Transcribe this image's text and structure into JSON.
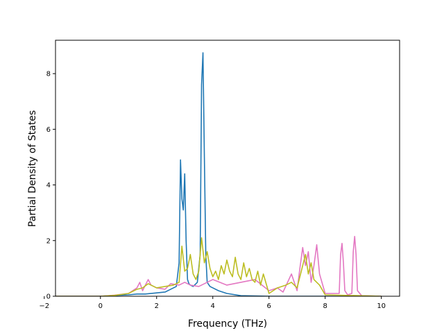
{
  "chart_data": {
    "type": "line",
    "title": "",
    "xlabel": "Frequency (THz)",
    "ylabel": "Partial Density of States",
    "xlim": [
      -1.6,
      10.65
    ],
    "ylim": [
      0,
      9.2
    ],
    "xticks": [
      -2,
      0,
      2,
      4,
      6,
      8,
      10
    ],
    "xtick_labels": [
      "−2",
      "0",
      "2",
      "4",
      "6",
      "8",
      "10"
    ],
    "yticks": [
      0,
      2,
      4,
      6,
      8
    ],
    "ytick_labels": [
      "0",
      "2",
      "4",
      "6",
      "8"
    ],
    "grid": false,
    "legend": "none",
    "series": [
      {
        "color": "#1f77b4",
        "x": [
          -1.6,
          0.0,
          0.5,
          1.0,
          1.3,
          1.6,
          2.0,
          2.3,
          2.5,
          2.7,
          2.8,
          2.85,
          2.9,
          2.95,
          3.0,
          3.05,
          3.1,
          3.15,
          3.2,
          3.3,
          3.45,
          3.55,
          3.6,
          3.65,
          3.7,
          3.75,
          3.8,
          3.9,
          4.0,
          4.2,
          4.5,
          5.0,
          6.0,
          10.0
        ],
        "y": [
          0,
          0,
          0.03,
          0.05,
          0.08,
          0.08,
          0.12,
          0.15,
          0.25,
          0.35,
          1.2,
          4.9,
          3.5,
          3.1,
          4.4,
          2.0,
          0.6,
          0.45,
          0.4,
          0.35,
          0.5,
          1.5,
          7.6,
          8.75,
          5.0,
          1.5,
          0.5,
          0.35,
          0.3,
          0.2,
          0.1,
          0.02,
          0,
          0
        ]
      },
      {
        "color": "#e377c2",
        "x": [
          -1.6,
          0.0,
          0.5,
          1.0,
          1.3,
          1.4,
          1.5,
          1.7,
          1.8,
          2.0,
          2.3,
          2.5,
          2.8,
          3.0,
          3.2,
          3.5,
          3.8,
          4.0,
          4.5,
          5.0,
          5.5,
          6.0,
          6.3,
          6.5,
          6.8,
          7.0,
          7.1,
          7.2,
          7.3,
          7.4,
          7.5,
          7.6,
          7.7,
          7.8,
          8.0,
          8.5,
          8.55,
          8.6,
          8.65,
          8.7,
          8.8,
          8.95,
          9.0,
          9.05,
          9.1,
          9.15,
          9.3,
          10.0
        ],
        "y": [
          0,
          0,
          0.04,
          0.1,
          0.3,
          0.5,
          0.2,
          0.6,
          0.4,
          0.3,
          0.25,
          0.45,
          0.4,
          0.5,
          0.4,
          0.35,
          0.5,
          0.6,
          0.4,
          0.5,
          0.6,
          0.2,
          0.3,
          0.15,
          0.8,
          0.2,
          1.0,
          1.75,
          1.1,
          1.6,
          0.5,
          1.1,
          1.85,
          0.8,
          0.1,
          0.1,
          1.5,
          1.9,
          1.2,
          0.2,
          0.05,
          0.1,
          1.6,
          2.15,
          1.5,
          0.2,
          0.02,
          0
        ]
      },
      {
        "color": "#bcbd22",
        "x": [
          -1.6,
          0.0,
          0.5,
          1.0,
          1.3,
          1.5,
          1.7,
          2.0,
          2.3,
          2.6,
          2.8,
          2.9,
          3.0,
          3.1,
          3.2,
          3.3,
          3.4,
          3.5,
          3.6,
          3.7,
          3.8,
          3.9,
          4.0,
          4.1,
          4.2,
          4.3,
          4.4,
          4.5,
          4.6,
          4.7,
          4.8,
          4.9,
          5.0,
          5.1,
          5.2,
          5.3,
          5.4,
          5.5,
          5.6,
          5.7,
          5.8,
          6.0,
          6.3,
          6.6,
          6.8,
          7.0,
          7.2,
          7.3,
          7.4,
          7.5,
          7.6,
          7.8,
          8.0,
          10.0
        ],
        "y": [
          0,
          0,
          0.03,
          0.1,
          0.25,
          0.3,
          0.45,
          0.3,
          0.35,
          0.4,
          0.5,
          1.8,
          0.9,
          1.0,
          1.5,
          0.8,
          0.6,
          0.9,
          2.1,
          1.2,
          1.6,
          1.0,
          0.7,
          0.9,
          0.6,
          1.1,
          0.8,
          1.3,
          0.9,
          0.7,
          1.4,
          0.8,
          0.6,
          1.2,
          0.7,
          1.0,
          0.6,
          0.5,
          0.9,
          0.4,
          0.8,
          0.1,
          0.3,
          0.4,
          0.5,
          0.3,
          1.1,
          1.5,
          0.8,
          1.2,
          0.6,
          0.4,
          0.05,
          0
        ]
      }
    ]
  }
}
